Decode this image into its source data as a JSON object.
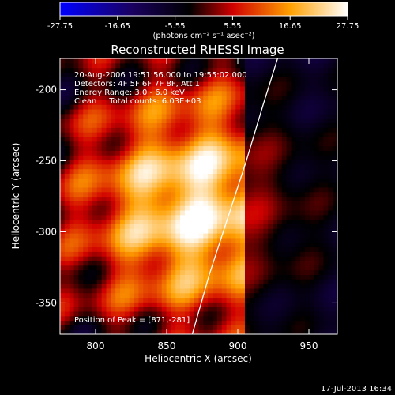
{
  "colorbar": {
    "tick_labels": [
      "-27.75",
      "-16.65",
      "-5.55",
      "5.55",
      "16.65",
      "27.75"
    ],
    "units_label": "(photons cm⁻² s⁻¹ asec⁻²)",
    "range": [
      -27.75,
      27.75
    ],
    "colormap": [
      "#0000ff",
      "#000000",
      "#ff0000",
      "#ffff00",
      "#ffffff"
    ]
  },
  "chart_data": {
    "type": "heatmap",
    "title": "Reconstructed RHESSI Image",
    "xlabel": "Heliocentric X (arcsec)",
    "ylabel": "Heliocentric Y (arcsec)",
    "xlim": [
      775,
      970
    ],
    "ylim": [
      -372,
      -178
    ],
    "x_ticks": [
      800,
      850,
      900,
      950
    ],
    "y_ticks": [
      -200,
      -250,
      -300,
      -350
    ],
    "info_lines": [
      "20-Aug-2006 19:51:56.000 to 19:55:02.000",
      "Detectors: 4F 5F 6F 7F 8F, Att 1",
      "Energy Range: 3.0 - 6.0 keV",
      "Clean     Total counts: 6.03E+03"
    ],
    "peak_label": "Position of Peak = [871,-281]",
    "peak": [
      871,
      -281
    ],
    "peak_value": 27.75,
    "limb_curve": [
      [
        868,
        -372
      ],
      [
        880,
        -330
      ],
      [
        893,
        -290
      ],
      [
        906,
        -250
      ],
      [
        918,
        -210
      ],
      [
        928,
        -178
      ]
    ]
  },
  "timestamp": "17-Jul-2013 16:34"
}
